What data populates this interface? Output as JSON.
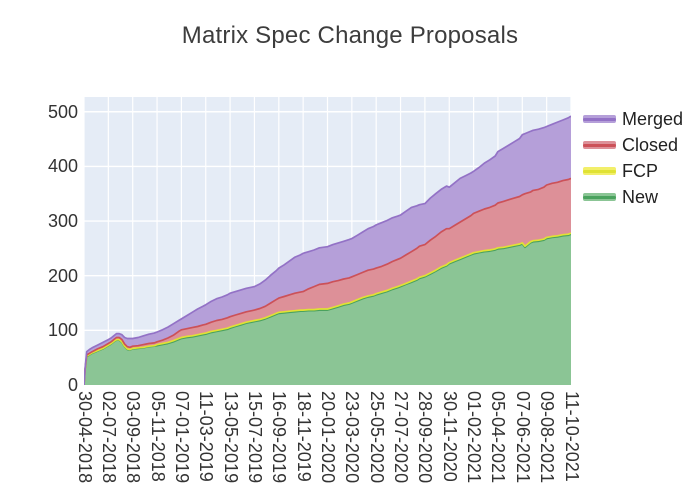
{
  "title": "Matrix Spec Change Proposals",
  "legend": {
    "items": [
      {
        "label": "Merged",
        "fill": "#b59fd9",
        "line": "#9372c6"
      },
      {
        "label": "Closed",
        "fill": "#dd9098",
        "line": "#cc5158"
      },
      {
        "label": "FCP",
        "fill": "#f2ef6a",
        "line": "#e0e234"
      },
      {
        "label": "New",
        "fill": "#8bc595",
        "line": "#4aa25e"
      }
    ]
  },
  "chart_data": {
    "type": "area",
    "stacked": true,
    "title": "Matrix Spec Change Proposals",
    "plot_bg": "#e5ecf6",
    "grid_color": "#ffffff",
    "ylim": [
      0,
      527
    ],
    "y_ticks": [
      0,
      100,
      200,
      300,
      400,
      500
    ],
    "x_range": [
      "30-04-2018",
      "11-10-2021"
    ],
    "x_tick_labels": [
      "30-04-2018",
      "02-07-2018",
      "03-09-2018",
      "05-11-2018",
      "07-01-2019",
      "11-03-2019",
      "13-05-2019",
      "15-07-2019",
      "16-09-2019",
      "18-11-2019",
      "20-01-2020",
      "23-03-2020",
      "25-05-2020",
      "27-07-2020",
      "28-09-2020",
      "30-11-2020",
      "01-02-2021",
      "05-04-2021",
      "07-06-2021",
      "09-08-2021",
      "11-10-2021"
    ],
    "stack_order_bottom_to_top": [
      "New",
      "FCP",
      "Closed",
      "Merged"
    ],
    "legend_order_top_to_bottom": [
      "Merged",
      "Closed",
      "FCP",
      "New"
    ],
    "dates": [
      "30-04-2018",
      "03-05-2018",
      "07-05-2018",
      "14-05-2018",
      "21-05-2018",
      "04-06-2018",
      "18-06-2018",
      "02-07-2018",
      "09-07-2018",
      "16-07-2018",
      "23-07-2018",
      "30-07-2018",
      "06-08-2018",
      "13-08-2018",
      "20-08-2018",
      "27-08-2018",
      "03-09-2018",
      "17-09-2018",
      "01-10-2018",
      "15-10-2018",
      "29-10-2018",
      "05-11-2018",
      "19-11-2018",
      "03-12-2018",
      "17-12-2018",
      "31-12-2018",
      "07-01-2019",
      "21-01-2019",
      "04-02-2019",
      "18-02-2019",
      "04-03-2019",
      "11-03-2019",
      "25-03-2019",
      "08-04-2019",
      "22-04-2019",
      "06-05-2019",
      "13-05-2019",
      "27-05-2019",
      "10-06-2019",
      "24-06-2019",
      "08-07-2019",
      "15-07-2019",
      "29-07-2019",
      "12-08-2019",
      "26-08-2019",
      "09-09-2019",
      "16-09-2019",
      "30-09-2019",
      "14-10-2019",
      "28-10-2019",
      "11-11-2019",
      "18-11-2019",
      "02-12-2019",
      "16-12-2019",
      "30-12-2019",
      "20-01-2020",
      "03-02-2020",
      "17-02-2020",
      "02-03-2020",
      "16-03-2020",
      "23-03-2020",
      "06-04-2020",
      "20-04-2020",
      "04-05-2020",
      "18-05-2020",
      "25-05-2020",
      "08-06-2020",
      "22-06-2020",
      "06-07-2020",
      "20-07-2020",
      "27-07-2020",
      "10-08-2020",
      "24-08-2020",
      "07-09-2020",
      "14-09-2020",
      "28-09-2020",
      "12-10-2020",
      "26-10-2020",
      "09-11-2020",
      "23-11-2020",
      "30-11-2020",
      "14-12-2020",
      "28-12-2020",
      "11-01-2021",
      "25-01-2021",
      "01-02-2021",
      "15-02-2021",
      "01-03-2021",
      "15-03-2021",
      "29-03-2021",
      "05-04-2021",
      "19-04-2021",
      "03-05-2021",
      "17-05-2021",
      "31-05-2021",
      "07-06-2021",
      "14-06-2021",
      "28-06-2021",
      "05-07-2021",
      "19-07-2021",
      "02-08-2021",
      "09-08-2021",
      "23-08-2021",
      "06-09-2021",
      "20-09-2021",
      "04-10-2021",
      "11-10-2021"
    ],
    "series": [
      {
        "name": "New",
        "fill": "#8bc595",
        "line": "#4aa25e",
        "values": [
          0,
          30,
          52,
          55,
          58,
          62,
          66,
          72,
          75,
          79,
          82,
          82,
          78,
          70,
          65,
          64,
          66,
          67,
          68,
          70,
          71,
          72,
          74,
          76,
          79,
          83,
          85,
          87,
          88,
          90,
          92,
          93,
          96,
          98,
          100,
          102,
          104,
          107,
          110,
          113,
          115,
          116,
          118,
          121,
          125,
          129,
          131,
          132,
          133,
          134,
          135,
          135,
          136,
          136,
          137,
          137,
          140,
          143,
          146,
          148,
          150,
          154,
          158,
          161,
          163,
          165,
          168,
          171,
          175,
          178,
          180,
          184,
          188,
          192,
          195,
          198,
          203,
          208,
          214,
          218,
          222,
          226,
          230,
          234,
          238,
          240,
          242,
          244,
          245,
          247,
          249,
          250,
          252,
          254,
          256,
          258,
          252,
          260,
          262,
          263,
          265,
          268,
          270,
          271,
          273,
          274,
          276
        ]
      },
      {
        "name": "FCP",
        "fill": "#f2ef6a",
        "line": "#e0e234",
        "values": [
          0,
          0,
          1,
          1,
          1,
          1,
          1,
          1,
          1,
          1,
          1,
          1,
          1,
          1,
          1,
          1,
          1,
          1,
          1,
          1,
          1,
          2,
          2,
          2,
          2,
          2,
          2,
          2,
          2,
          2,
          2,
          2,
          2,
          2,
          2,
          2,
          2,
          2,
          2,
          2,
          2,
          2,
          2,
          2,
          2,
          2,
          2,
          2,
          2,
          2,
          2,
          2,
          2,
          2,
          2,
          2,
          2,
          2,
          2,
          2,
          2,
          2,
          2,
          2,
          2,
          2,
          2,
          2,
          2,
          2,
          2,
          2,
          2,
          2,
          2,
          2,
          2,
          2,
          2,
          2,
          2,
          2,
          2,
          2,
          2,
          2,
          2,
          2,
          2,
          2,
          2,
          2,
          2,
          2,
          2,
          2,
          2,
          2,
          2,
          2,
          2,
          2,
          2,
          2,
          2,
          2,
          2
        ]
      },
      {
        "name": "Closed",
        "fill": "#dd9098",
        "line": "#cc5158",
        "values": [
          0,
          1,
          2,
          2,
          2,
          3,
          3,
          3,
          3,
          3,
          4,
          4,
          4,
          4,
          4,
          4,
          4,
          4,
          5,
          5,
          5,
          5,
          6,
          8,
          10,
          13,
          14,
          14,
          15,
          15,
          16,
          16,
          17,
          18,
          18,
          19,
          19,
          19,
          19,
          19,
          19,
          19,
          20,
          21,
          23,
          25,
          26,
          28,
          30,
          32,
          33,
          34,
          38,
          42,
          45,
          47,
          47,
          46,
          46,
          46,
          46,
          46,
          46,
          47,
          47,
          47,
          47,
          48,
          49,
          50,
          50,
          52,
          54,
          56,
          57,
          57,
          60,
          62,
          64,
          66,
          62,
          64,
          66,
          68,
          70,
          72,
          74,
          76,
          78,
          80,
          82,
          84,
          85,
          86,
          87,
          88,
          96,
          91,
          92,
          93,
          95,
          96,
          97,
          98,
          99,
          100,
          100
        ]
      },
      {
        "name": "Merged",
        "fill": "#b59fd9",
        "line": "#9372c6",
        "values": [
          0,
          2,
          6,
          7,
          7,
          7,
          8,
          7,
          7,
          7,
          7,
          7,
          9,
          12,
          15,
          16,
          14,
          15,
          16,
          17,
          18,
          18,
          19,
          20,
          21,
          20,
          20,
          24,
          28,
          32,
          34,
          36,
          38,
          40,
          41,
          42,
          43,
          43,
          43,
          43,
          43,
          43,
          45,
          48,
          51,
          53,
          55,
          58,
          62,
          66,
          68,
          70,
          68,
          67,
          67,
          67,
          68,
          69,
          69,
          70,
          70,
          72,
          74,
          76,
          78,
          79,
          80,
          80,
          80,
          79,
          79,
          80,
          81,
          78,
          76,
          75,
          77,
          78,
          78,
          78,
          76,
          78,
          80,
          79,
          78,
          77,
          80,
          84,
          87,
          90,
          94,
          97,
          100,
          103,
          106,
          110,
          110,
          111,
          110,
          110,
          109,
          107,
          108,
          110,
          111,
          113,
          114
        ]
      }
    ]
  }
}
